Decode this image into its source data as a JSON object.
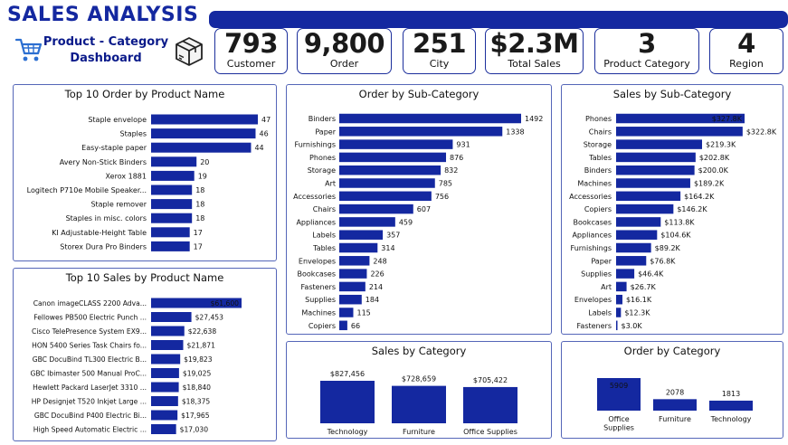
{
  "header": {
    "title": "SALES ANALYSIS",
    "subtitle_line1": "Product - Category",
    "subtitle_line2": "Dashboard",
    "accent": "#1428a0"
  },
  "kpis": [
    {
      "value": "793",
      "label": "Customer"
    },
    {
      "value": "9,800",
      "label": "Order"
    },
    {
      "value": "251",
      "label": "City"
    },
    {
      "value": "$2.3M",
      "label": "Total Sales"
    },
    {
      "value": "3",
      "label": "Product Category"
    },
    {
      "value": "4",
      "label": "Region"
    }
  ],
  "panels": {
    "top10_order": "Top 10 Order by Product Name",
    "top10_sales": "Top 10 Sales by Product Name",
    "order_subcat": "Order by Sub-Category",
    "sales_subcat": "Sales by Sub-Category",
    "sales_cat": "Sales by Category",
    "order_cat": "Order by Category"
  },
  "chart_data": [
    {
      "id": "top10_order",
      "type": "bar",
      "orientation": "horizontal",
      "categories": [
        "Staple envelope",
        "Staples",
        "Easy-staple paper",
        "Avery Non-Stick Binders",
        "Xerox 1881",
        "Logitech P710e Mobile Speaker...",
        "Staple remover",
        "Staples in misc. colors",
        "KI Adjustable-Height Table",
        "Storex Dura Pro Binders"
      ],
      "values": [
        47,
        46,
        44,
        20,
        19,
        18,
        18,
        18,
        17,
        17
      ],
      "labels": [
        "47",
        "46",
        "44",
        "20",
        "19",
        "18",
        "18",
        "18",
        "17",
        "17"
      ],
      "color": "#1428a0"
    },
    {
      "id": "top10_sales",
      "type": "bar",
      "orientation": "horizontal",
      "categories": [
        "Canon imageCLASS 2200 Adva...",
        "Fellowes PB500 Electric Punch ...",
        "Cisco TelePresence System EX9...",
        "HON 5400 Series Task Chairs fo...",
        "GBC DocuBind TL300 Electric B...",
        "GBC Ibimaster 500 Manual ProC...",
        "Hewlett Packard LaserJet 3310 ...",
        "HP Designjet T520 Inkjet Large ...",
        "GBC DocuBind P400 Electric Bi...",
        "High Speed Automatic Electric ..."
      ],
      "values": [
        61600,
        27453,
        22638,
        21871,
        19823,
        19025,
        18840,
        18375,
        17965,
        17030
      ],
      "labels": [
        "$61,600",
        "$27,453",
        "$22,638",
        "$21,871",
        "$19,823",
        "$19,025",
        "$18,840",
        "$18,375",
        "$17,965",
        "$17,030"
      ],
      "color": "#1428a0"
    },
    {
      "id": "order_subcat",
      "type": "bar",
      "orientation": "horizontal",
      "categories": [
        "Binders",
        "Paper",
        "Furnishings",
        "Phones",
        "Storage",
        "Art",
        "Accessories",
        "Chairs",
        "Appliances",
        "Labels",
        "Tables",
        "Envelopes",
        "Bookcases",
        "Fasteners",
        "Supplies",
        "Machines",
        "Copiers"
      ],
      "values": [
        1492,
        1338,
        931,
        876,
        832,
        785,
        756,
        607,
        459,
        357,
        314,
        248,
        226,
        214,
        184,
        115,
        66
      ],
      "labels": [
        "1492",
        "1338",
        "931",
        "876",
        "832",
        "785",
        "756",
        "607",
        "459",
        "357",
        "314",
        "248",
        "226",
        "214",
        "184",
        "115",
        "66"
      ],
      "color": "#1428a0"
    },
    {
      "id": "sales_subcat",
      "type": "bar",
      "orientation": "horizontal",
      "categories": [
        "Phones",
        "Chairs",
        "Storage",
        "Tables",
        "Binders",
        "Machines",
        "Accessories",
        "Copiers",
        "Bookcases",
        "Appliances",
        "Furnishings",
        "Paper",
        "Supplies",
        "Art",
        "Envelopes",
        "Labels",
        "Fasteners"
      ],
      "values": [
        327.8,
        322.8,
        219.3,
        202.8,
        200.0,
        189.2,
        164.2,
        146.2,
        113.8,
        104.6,
        89.2,
        76.8,
        46.4,
        26.7,
        16.1,
        12.3,
        3.0
      ],
      "labels": [
        "$327.8K",
        "$322.8K",
        "$219.3K",
        "$202.8K",
        "$200.0K",
        "$189.2K",
        "$164.2K",
        "$146.2K",
        "$113.8K",
        "$104.6K",
        "$89.2K",
        "$76.8K",
        "$46.4K",
        "$26.7K",
        "$16.1K",
        "$12.3K",
        "$3.0K"
      ],
      "color": "#1428a0"
    },
    {
      "id": "sales_cat",
      "type": "bar",
      "orientation": "vertical",
      "categories": [
        "Technology",
        "Furniture",
        "Office Supplies"
      ],
      "values": [
        827456,
        728659,
        705422
      ],
      "labels": [
        "$827,456",
        "$728,659",
        "$705,422"
      ],
      "color": "#1428a0"
    },
    {
      "id": "order_cat",
      "type": "bar",
      "orientation": "vertical",
      "categories": [
        "Office Supplies",
        "Furniture",
        "Technology"
      ],
      "values": [
        5909,
        2078,
        1813
      ],
      "labels": [
        "5909",
        "2078",
        "1813"
      ],
      "color": "#1428a0"
    }
  ]
}
